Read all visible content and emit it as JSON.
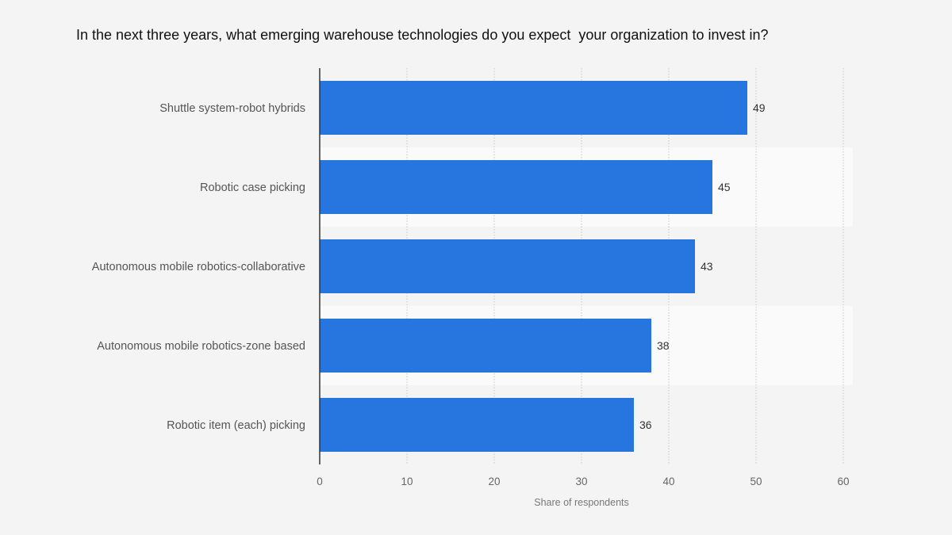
{
  "chart_data": {
    "type": "bar",
    "orientation": "horizontal",
    "title": "In the next three years, what emerging warehouse technologies do you expect  your organization to invest in?",
    "categories": [
      "Shuttle system-robot hybrids",
      "Robotic case picking",
      "Autonomous mobile robotics-collaborative",
      "Autonomous mobile robotics-zone based",
      "Robotic item (each) picking"
    ],
    "values": [
      49,
      45,
      43,
      38,
      36
    ],
    "xlabel": "Share of respondents",
    "ylabel": "",
    "xlim": [
      0,
      60
    ],
    "xticks": [
      0,
      10,
      20,
      30,
      40,
      50,
      60
    ],
    "grid": "vertical dotted",
    "bar_color": "#2775de",
    "band_colors": [
      "#f4f4f4",
      "#fafafa"
    ]
  }
}
